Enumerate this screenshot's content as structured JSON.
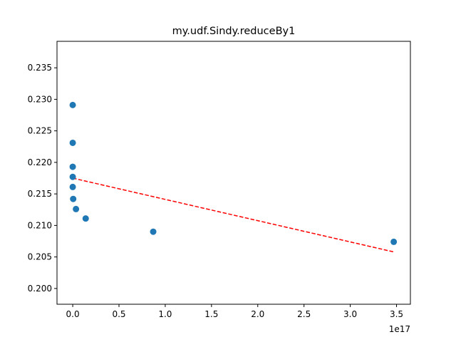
{
  "chart_data": {
    "type": "scatter",
    "title": "my.udf.Sindy.reduceBy1",
    "xlabel": "",
    "ylabel": "",
    "x_offset_label": "1e17",
    "xlim": [
      -0.17,
      3.65
    ],
    "ylim": [
      0.1975,
      0.2392
    ],
    "x_ticks": [
      0.0,
      0.5,
      1.0,
      1.5,
      2.0,
      2.5,
      3.0,
      3.5
    ],
    "x_tick_labels": [
      "0.0",
      "0.5",
      "1.0",
      "1.5",
      "2.0",
      "2.5",
      "3.0",
      "3.5"
    ],
    "y_ticks": [
      0.2,
      0.205,
      0.21,
      0.215,
      0.22,
      0.225,
      0.23,
      0.235
    ],
    "y_tick_labels": [
      "0.200",
      "0.205",
      "0.210",
      "0.215",
      "0.220",
      "0.225",
      "0.230",
      "0.235"
    ],
    "grid": false,
    "point_color": "#1f77b4",
    "trend_color": "#ff0000",
    "points": [
      {
        "x": 0.0,
        "y": 0.2291
      },
      {
        "x": 0.0,
        "y": 0.2231
      },
      {
        "x": 0.0,
        "y": 0.2193
      },
      {
        "x": 0.0,
        "y": 0.2177
      },
      {
        "x": 0.0,
        "y": 0.2161
      },
      {
        "x": 0.005,
        "y": 0.2142
      },
      {
        "x": 0.035,
        "y": 0.2126
      },
      {
        "x": 0.14,
        "y": 0.2111
      },
      {
        "x": 0.87,
        "y": 0.209
      },
      {
        "x": 3.47,
        "y": 0.2074
      }
    ],
    "trend_line": {
      "x": [
        0.0,
        3.47
      ],
      "y": [
        0.2175,
        0.2058
      ],
      "style": "dashed"
    }
  }
}
